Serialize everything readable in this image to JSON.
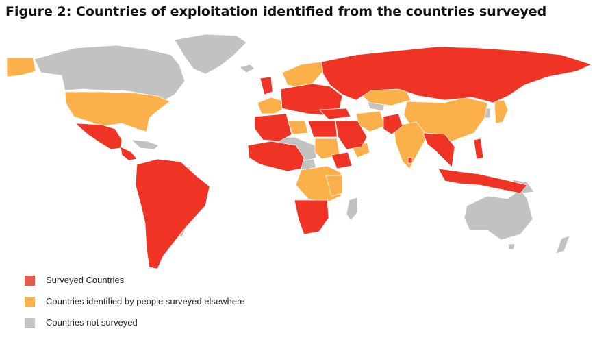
{
  "figure": {
    "title": "Figure 2: Countries of exploitation identified from the countries surveyed"
  },
  "colors": {
    "surveyed": "#EF3324",
    "identified": "#FBB04A",
    "not_surveyed": "#C2C2C2",
    "swatch_surveyed": "#E55B4C",
    "swatch_identified": "#F9B34B",
    "swatch_not_surveyed": "#C4C4C4"
  },
  "legend": {
    "items": [
      {
        "label": "Surveyed Countries",
        "category": "surveyed"
      },
      {
        "label": "Countries identified by people surveyed elsewhere",
        "category": "identified"
      },
      {
        "label": "Countries not surveyed",
        "category": "not_surveyed"
      }
    ]
  }
}
